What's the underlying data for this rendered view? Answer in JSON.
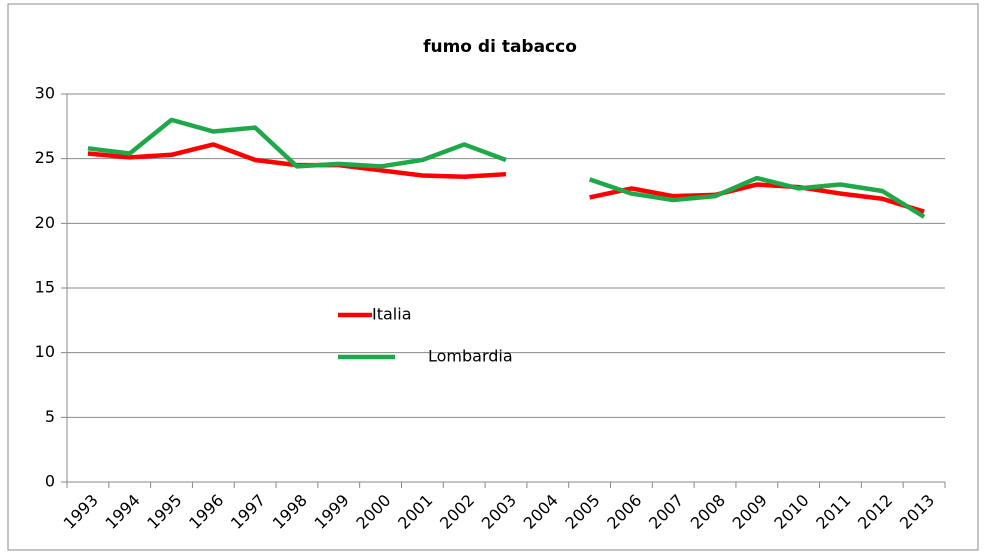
{
  "chart_data": {
    "type": "line",
    "title": "fumo di tabacco",
    "categories": [
      "1993",
      "1994",
      "1995",
      "1996",
      "1997",
      "1998",
      "1999",
      "2000",
      "2001",
      "2002",
      "2003",
      "2004",
      "2005",
      "2006",
      "2007",
      "2008",
      "2009",
      "2010",
      "2011",
      "2012",
      "2013"
    ],
    "series": [
      {
        "name": "Italia",
        "color": "#ff0000",
        "values": [
          25.4,
          25.1,
          25.3,
          26.1,
          24.9,
          24.5,
          24.5,
          24.1,
          23.7,
          23.6,
          23.8,
          null,
          22.0,
          22.7,
          22.1,
          22.2,
          23.0,
          22.8,
          22.3,
          21.9,
          20.9
        ]
      },
      {
        "name": "Lombardia",
        "color": "#1fa84a",
        "values": [
          25.8,
          25.4,
          28.0,
          27.1,
          27.4,
          24.4,
          24.6,
          24.4,
          24.9,
          26.1,
          24.9,
          null,
          23.4,
          22.3,
          21.8,
          22.1,
          23.5,
          22.7,
          23.0,
          22.5,
          20.5
        ]
      }
    ],
    "ylim": [
      0,
      30
    ],
    "yticks": [
      0,
      5,
      10,
      15,
      20,
      25,
      30
    ],
    "grid": true
  }
}
